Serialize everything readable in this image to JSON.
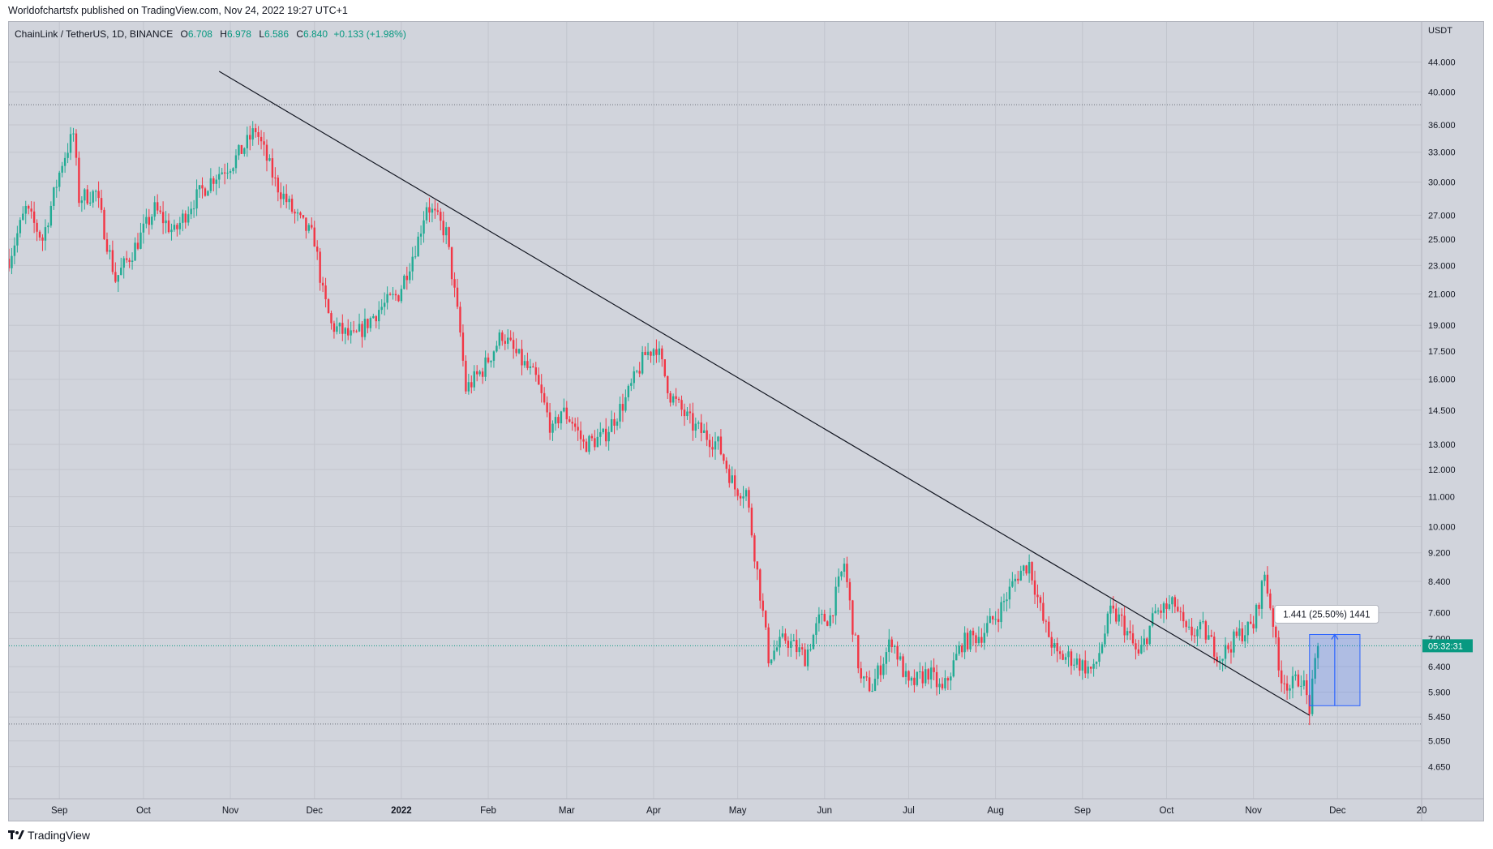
{
  "header": {
    "published": "Worldofchartsfx published on TradingView.com, Nov 24, 2022 19:27 UTC+1"
  },
  "legend": {
    "symbol": "ChainLink / TetherUS, 1D, BINANCE",
    "o_label": "O",
    "o": "6.708",
    "h_label": "H",
    "h": "6.978",
    "l_label": "L",
    "l": "6.586",
    "c_label": "C",
    "c": "6.840",
    "change": "+0.133 (+1.98%)"
  },
  "footer": {
    "brand": "TradingView"
  },
  "colors": {
    "up": "#22ab94",
    "down": "#f23645",
    "bg": "#d1d4dc",
    "grid": "#c2c5cd",
    "measure": "#2962ff",
    "price_tag": "#089981"
  },
  "chart_data": {
    "type": "candlestick",
    "title": "ChainLink / TetherUS, 1D, BINANCE",
    "currency": "USDT",
    "scale": "log",
    "ylim": [
      4.2,
      50.0
    ],
    "y_ticks": [
      44.0,
      40.0,
      36.0,
      33.0,
      30.0,
      27.0,
      25.0,
      23.0,
      21.0,
      19.0,
      17.5,
      16.0,
      14.5,
      13.0,
      12.0,
      11.0,
      10.0,
      9.2,
      8.4,
      7.6,
      7.0,
      6.4,
      5.9,
      5.45,
      5.05,
      4.65
    ],
    "y_tick_labels": [
      "44.000",
      "40.000",
      "36.000",
      "33.000",
      "30.000",
      "27.000",
      "25.000",
      "23.000",
      "21.000",
      "19.000",
      "17.500",
      "16.000",
      "14.500",
      "13.000",
      "12.000",
      "11.000",
      "10.000",
      "9.200",
      "8.400",
      "7.600",
      "7.000",
      "6.400",
      "5.900",
      "5.450",
      "5.050",
      "4.650"
    ],
    "x_start": "2021-08-14",
    "x_end": "2022-12-31",
    "x_ticks": [
      {
        "label": "Sep",
        "date": "2021-09-01"
      },
      {
        "label": "Oct",
        "date": "2021-10-01"
      },
      {
        "label": "Nov",
        "date": "2021-11-01"
      },
      {
        "label": "Dec",
        "date": "2021-12-01"
      },
      {
        "label": "2022",
        "date": "2022-01-01",
        "bold": true
      },
      {
        "label": "Feb",
        "date": "2022-02-01"
      },
      {
        "label": "Mar",
        "date": "2022-03-01"
      },
      {
        "label": "Apr",
        "date": "2022-04-01"
      },
      {
        "label": "May",
        "date": "2022-05-01"
      },
      {
        "label": "Jun",
        "date": "2022-06-01"
      },
      {
        "label": "Jul",
        "date": "2022-07-01"
      },
      {
        "label": "Aug",
        "date": "2022-08-01"
      },
      {
        "label": "Sep",
        "date": "2022-09-01"
      },
      {
        "label": "Oct",
        "date": "2022-10-01"
      },
      {
        "label": "Nov",
        "date": "2022-11-01"
      },
      {
        "label": "Dec",
        "date": "2022-12-01"
      },
      {
        "label": "20",
        "date": "2022-12-31"
      }
    ],
    "price_anchors": [
      [
        "2021-08-14",
        23.5
      ],
      [
        "2021-08-20",
        27.5
      ],
      [
        "2021-08-26",
        25.0
      ],
      [
        "2021-09-02",
        32.0
      ],
      [
        "2021-09-06",
        35.0
      ],
      [
        "2021-09-08",
        28.5
      ],
      [
        "2021-09-14",
        29.0
      ],
      [
        "2021-09-21",
        22.0
      ],
      [
        "2021-09-27",
        24.0
      ],
      [
        "2021-10-05",
        27.5
      ],
      [
        "2021-10-12",
        25.5
      ],
      [
        "2021-10-18",
        28.0
      ],
      [
        "2021-10-26",
        30.5
      ],
      [
        "2021-11-02",
        32.0
      ],
      [
        "2021-11-07",
        34.0
      ],
      [
        "2021-11-10",
        35.5
      ],
      [
        "2021-11-17",
        30.0
      ],
      [
        "2021-11-24",
        27.0
      ],
      [
        "2021-12-01",
        25.0
      ],
      [
        "2021-12-04",
        21.0
      ],
      [
        "2021-12-07",
        19.0
      ],
      [
        "2021-12-15",
        18.2
      ],
      [
        "2021-12-24",
        20.0
      ],
      [
        "2021-12-31",
        21.0
      ],
      [
        "2022-01-07",
        25.0
      ],
      [
        "2022-01-10",
        28.0
      ],
      [
        "2022-01-17",
        25.5
      ],
      [
        "2022-01-22",
        18.5
      ],
      [
        "2022-01-24",
        15.5
      ],
      [
        "2022-01-30",
        16.5
      ],
      [
        "2022-02-06",
        18.5
      ],
      [
        "2022-02-10",
        17.5
      ],
      [
        "2022-02-18",
        16.0
      ],
      [
        "2022-02-24",
        13.5
      ],
      [
        "2022-02-27",
        14.5
      ],
      [
        "2022-03-03",
        14.0
      ],
      [
        "2022-03-07",
        13.0
      ],
      [
        "2022-03-14",
        13.3
      ],
      [
        "2022-03-22",
        15.0
      ],
      [
        "2022-03-29",
        17.3
      ],
      [
        "2022-04-02",
        17.8
      ],
      [
        "2022-04-07",
        15.2
      ],
      [
        "2022-04-15",
        13.8
      ],
      [
        "2022-04-24",
        13.0
      ],
      [
        "2022-04-30",
        11.3
      ],
      [
        "2022-05-04",
        11.2
      ],
      [
        "2022-05-09",
        8.1
      ],
      [
        "2022-05-12",
        6.6
      ],
      [
        "2022-05-18",
        7.0
      ],
      [
        "2022-05-25",
        6.6
      ],
      [
        "2022-05-30",
        7.4
      ],
      [
        "2022-06-03",
        7.5
      ],
      [
        "2022-06-08",
        8.9
      ],
      [
        "2022-06-11",
        7.3
      ],
      [
        "2022-06-14",
        6.1
      ],
      [
        "2022-06-18",
        6.0
      ],
      [
        "2022-06-25",
        7.0
      ],
      [
        "2022-07-01",
        6.0
      ],
      [
        "2022-07-08",
        6.3
      ],
      [
        "2022-07-13",
        5.9
      ],
      [
        "2022-07-20",
        6.9
      ],
      [
        "2022-07-27",
        7.1
      ],
      [
        "2022-08-02",
        7.6
      ],
      [
        "2022-08-09",
        8.6
      ],
      [
        "2022-08-13",
        8.9
      ],
      [
        "2022-08-18",
        7.4
      ],
      [
        "2022-08-23",
        6.6
      ],
      [
        "2022-08-27",
        6.6
      ],
      [
        "2022-09-05",
        6.3
      ],
      [
        "2022-09-11",
        7.6
      ],
      [
        "2022-09-15",
        7.4
      ],
      [
        "2022-09-21",
        6.6
      ],
      [
        "2022-09-27",
        7.6
      ],
      [
        "2022-10-04",
        7.8
      ],
      [
        "2022-10-08",
        7.1
      ],
      [
        "2022-10-14",
        7.2
      ],
      [
        "2022-10-20",
        6.6
      ],
      [
        "2022-10-27",
        7.1
      ],
      [
        "2022-11-01",
        7.3
      ],
      [
        "2022-11-05",
        8.6
      ],
      [
        "2022-11-08",
        7.4
      ],
      [
        "2022-11-10",
        6.3
      ],
      [
        "2022-11-14",
        6.0
      ],
      [
        "2022-11-18",
        6.2
      ],
      [
        "2022-11-21",
        5.6
      ],
      [
        "2022-11-24",
        6.84
      ]
    ],
    "annotations": {
      "trendline": {
        "from": {
          "date": "2021-10-28",
          "price": 42.7
        },
        "to": {
          "date": "2022-11-21",
          "price": 5.48
        }
      },
      "resistance_dotted_line": 38.4,
      "support_dotted_line": 5.33,
      "current_price_line": 6.84,
      "countdown_label": "05:32:31",
      "measure": {
        "from_date": "2022-11-21",
        "to_date": "2022-12-09",
        "low": 5.65,
        "high": 7.09,
        "label": "1.441 (25.50%) 1441"
      }
    }
  }
}
